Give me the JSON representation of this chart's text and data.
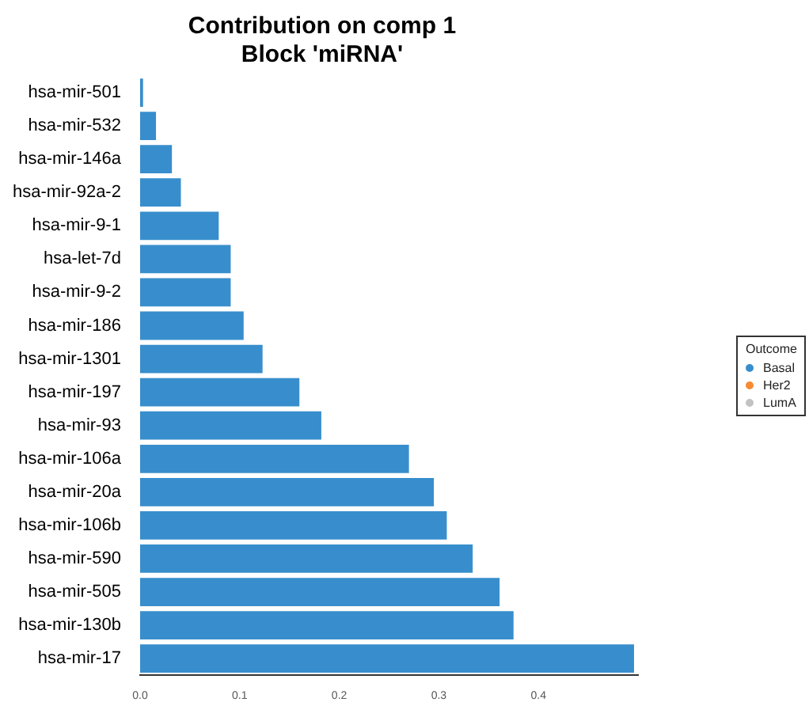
{
  "chart_data": {
    "type": "bar",
    "orientation": "horizontal",
    "stacked": true,
    "title": "Contribution on comp 1\nBlock 'miRNA'",
    "categories": [
      "hsa-mir-501",
      "hsa-mir-532",
      "hsa-mir-146a",
      "hsa-mir-92a-2",
      "hsa-mir-9-1",
      "hsa-let-7d",
      "hsa-mir-9-2",
      "hsa-mir-186",
      "hsa-mir-1301",
      "hsa-mir-197",
      "hsa-mir-93",
      "hsa-mir-106a",
      "hsa-mir-20a",
      "hsa-mir-106b",
      "hsa-mir-590",
      "hsa-mir-505",
      "hsa-mir-130b",
      "hsa-mir-17"
    ],
    "series": [
      {
        "name": "Basal",
        "color": "#388ecc",
        "values": [
          0.003,
          0.016,
          0.032,
          0.041,
          0.079,
          0.091,
          0.091,
          0.104,
          0.123,
          0.16,
          0.182,
          0.27,
          0.295,
          0.308,
          0.334,
          0.361,
          0.375,
          0.496
        ]
      },
      {
        "name": "Her2",
        "color": "#f68b33",
        "values": [
          null,
          null,
          null,
          null,
          null,
          null,
          null,
          null,
          null,
          null,
          null,
          null,
          null,
          null,
          null,
          null,
          null,
          null
        ]
      },
      {
        "name": "LumA",
        "color": "#c2c2c2",
        "values": [
          null,
          null,
          null,
          null,
          null,
          null,
          null,
          null,
          null,
          null,
          null,
          null,
          null,
          null,
          null,
          null,
          null,
          null
        ]
      }
    ],
    "xlim": [
      0,
      0.5
    ],
    "xticks": [
      {
        "value": 0,
        "label": "0.0"
      },
      {
        "value": 0.1,
        "label": "0.1"
      },
      {
        "value": 0.2,
        "label": "0.2"
      },
      {
        "value": 0.3,
        "label": "0.3"
      },
      {
        "value": 0.4,
        "label": "0.4"
      }
    ],
    "grid": false,
    "legend": "right",
    "legend_title": "Outcome"
  }
}
